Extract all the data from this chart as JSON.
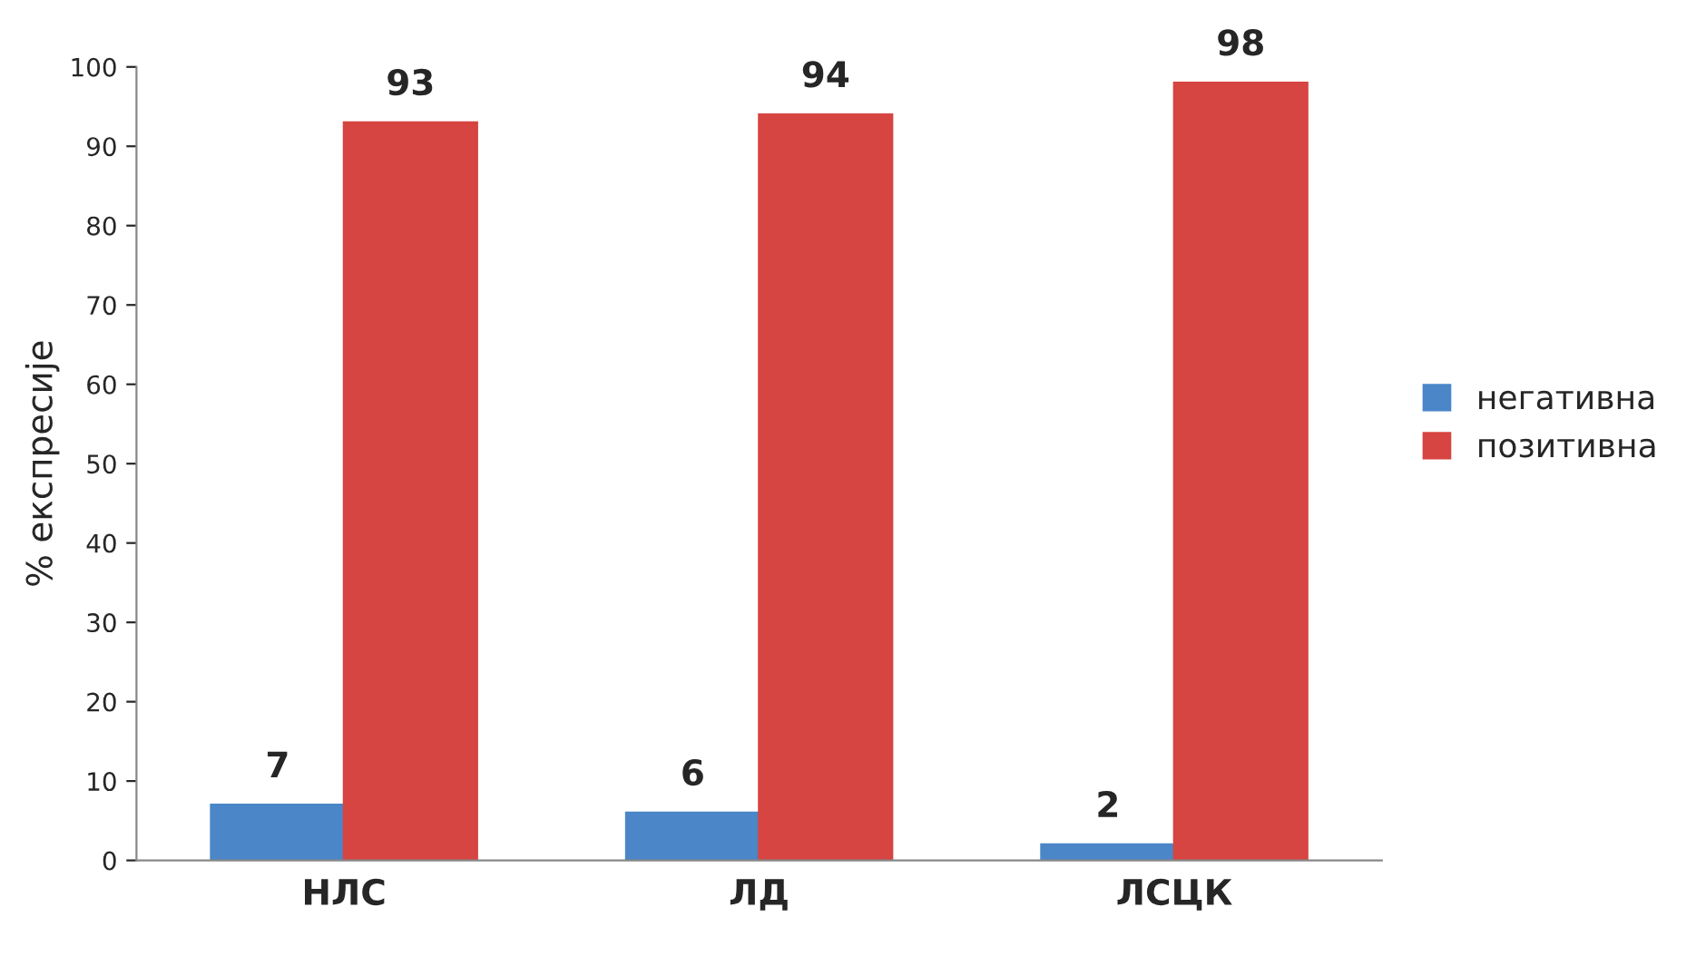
{
  "chart_data": {
    "type": "bar",
    "ylabel": "% експресије",
    "categories": [
      "НЛС",
      "ЛД",
      "ЛСЦК"
    ],
    "series": [
      {
        "name": "негативна",
        "color": "#4a86c8",
        "values": [
          7,
          6,
          2
        ]
      },
      {
        "name": "позитивна",
        "color": "#d64541",
        "values": [
          93,
          94,
          98
        ]
      }
    ],
    "ylim": [
      0,
      100
    ],
    "yticks": [
      0,
      10,
      20,
      30,
      40,
      50,
      60,
      70,
      80,
      90,
      100
    ],
    "data_labels": true,
    "legend": "right",
    "grid": false
  }
}
